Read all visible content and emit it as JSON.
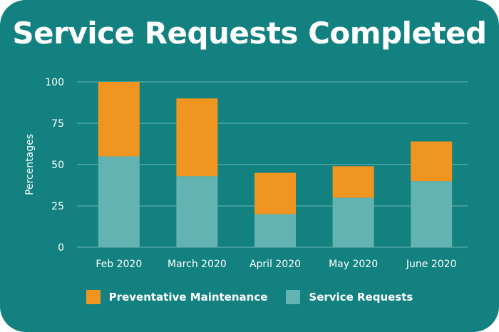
{
  "title": "Service Requests Completed",
  "colors": {
    "background": "#128180",
    "preventative": "#F0951F",
    "service": "#62B3B1",
    "grid": "#6EB6B5"
  },
  "chart_data": {
    "type": "bar",
    "stacked": true,
    "categories": [
      "Feb 2020",
      "March 2020",
      "April 2020",
      "May 2020",
      "June 2020"
    ],
    "series": [
      {
        "name": "Service Requests",
        "values": [
          55,
          43,
          20,
          30,
          40
        ]
      },
      {
        "name": "Preventative Maintenance",
        "values": [
          45,
          47,
          25,
          19,
          24
        ]
      }
    ],
    "ylabel": "Percentages",
    "xlabel": "",
    "ylim": [
      0,
      100
    ],
    "yticks": [
      0,
      25,
      50,
      75,
      100
    ],
    "grid": true,
    "legend": "bottom"
  },
  "legend": {
    "items": [
      {
        "label": "Preventative Maintenance",
        "color": "#F0951F"
      },
      {
        "label": "Service Requests",
        "color": "#62B3B1"
      }
    ]
  }
}
